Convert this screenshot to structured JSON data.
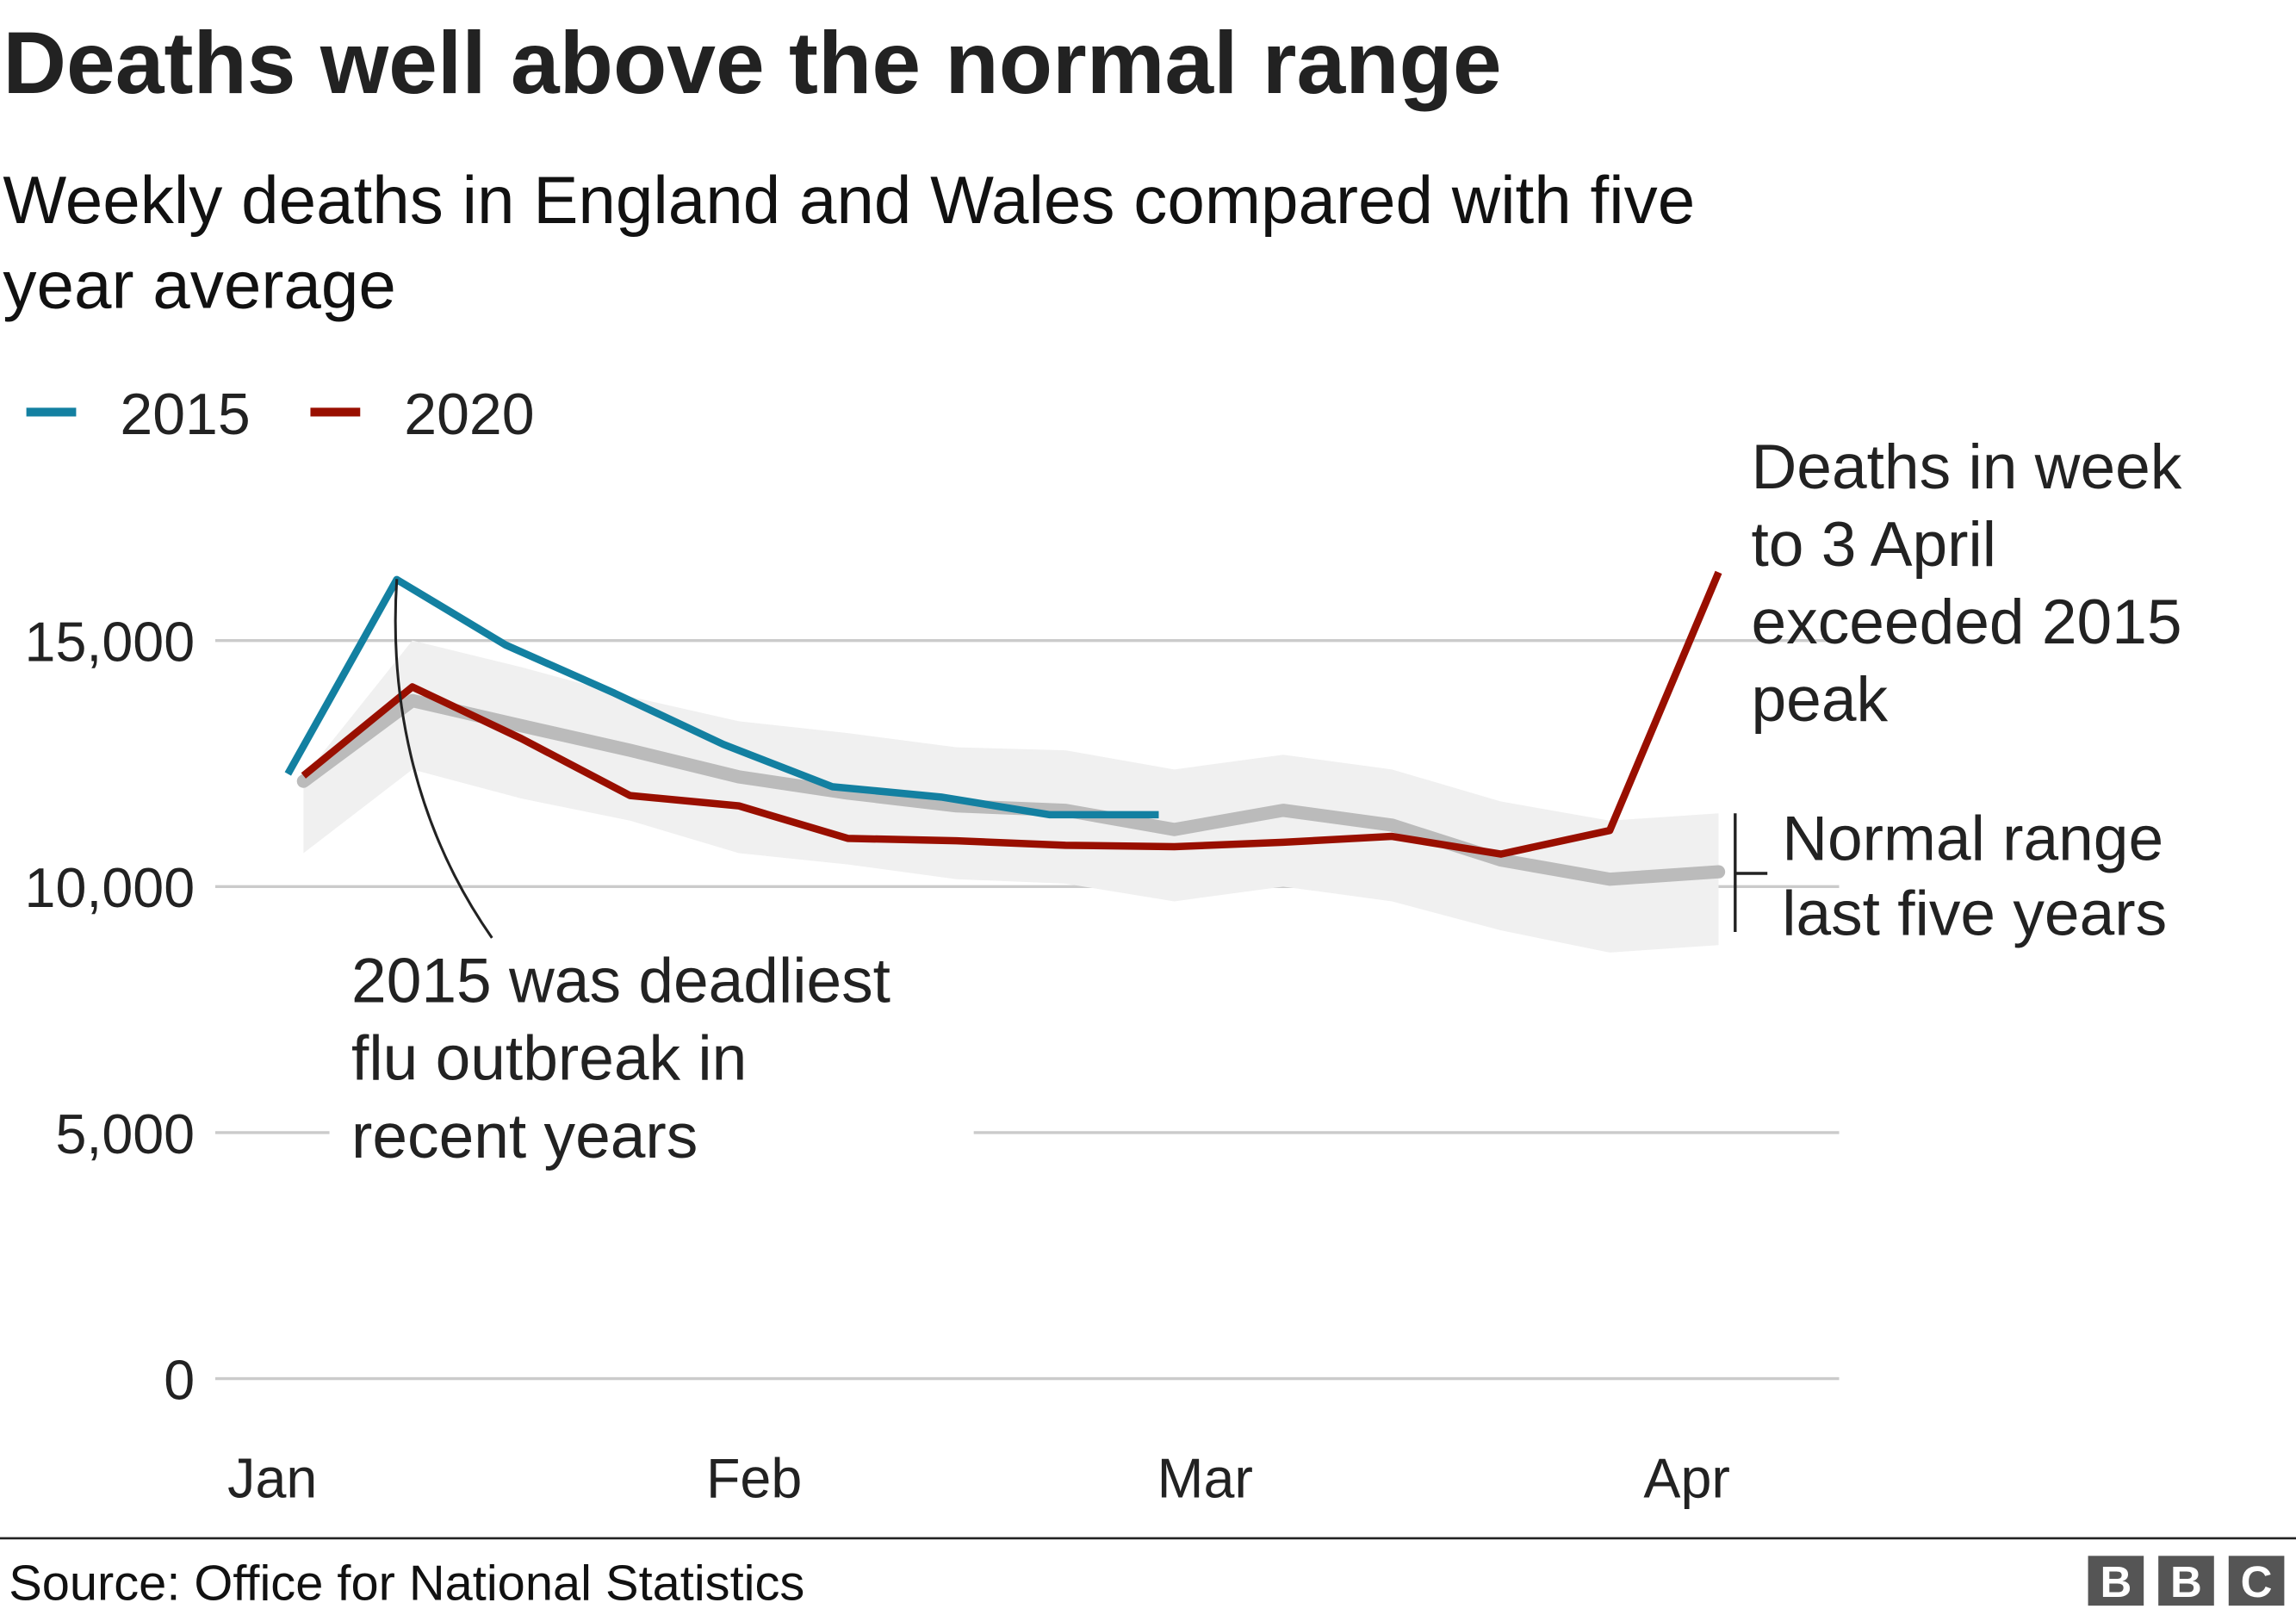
{
  "title": "Deaths well above the normal range",
  "subtitle_lines": [
    "Weekly deaths in England and Wales compared with five",
    "year average"
  ],
  "source": "Source: Office for National Statistics",
  "logo": "BBC",
  "colors": {
    "2015": "#1380a1",
    "2020": "#990f00",
    "average": "#bbbbbb",
    "range": "#f0f0f0",
    "grid": "#cbcbcb"
  },
  "chart_data": {
    "type": "line",
    "title": "Deaths well above the normal range",
    "ylim": [
      0,
      16500
    ],
    "yticks": [
      0,
      5000,
      10000,
      15000
    ],
    "ytick_labels": [
      "0",
      "5,000",
      "10,000",
      "15,000"
    ],
    "xtick_labels": [
      "Jan",
      "Feb",
      "Mar",
      "Apr"
    ],
    "grid": true,
    "legend": "top-left",
    "series": [
      {
        "name": "2015",
        "color": "#1380a1",
        "x": [
          "Jan 2",
          "Jan 9",
          "Jan 16",
          "Jan 23",
          "Jan 30",
          "Feb 6",
          "Feb 13",
          "Feb 20",
          "Feb 27"
        ],
        "values": [
          12290,
          16240,
          14910,
          13930,
          12890,
          12030,
          11820,
          11460,
          11460
        ]
      },
      {
        "name": "2020",
        "color": "#990f00",
        "x": [
          "Jan 3",
          "Jan 10",
          "Jan 17",
          "Jan 24",
          "Jan 31",
          "Feb 7",
          "Feb 14",
          "Feb 21",
          "Feb 28",
          "Mar 6",
          "Mar 13",
          "Mar 20",
          "Mar 27",
          "Apr 3"
        ],
        "values": [
          12254,
          14058,
          13010,
          11850,
          11640,
          10980,
          10930,
          10840,
          10810,
          10900,
          11020,
          10660,
          11140,
          16387
        ]
      }
    ],
    "five_year_average": {
      "x": [
        "Jan 3",
        "Jan 10",
        "Jan 17",
        "Jan 24",
        "Jan 31",
        "Feb 7",
        "Feb 14",
        "Feb 21",
        "Feb 28",
        "Mar 6",
        "Mar 13",
        "Mar 20",
        "Mar 27",
        "Apr 3"
      ],
      "values": [
        12140,
        13780,
        13270,
        12770,
        12230,
        11900,
        11640,
        11550,
        11160,
        11550,
        11250,
        10540,
        10150,
        10300
      ],
      "upper": [
        12230,
        15000,
        14460,
        13860,
        13360,
        13120,
        12830,
        12770,
        12380,
        12680,
        12380,
        11730,
        11340,
        11490
      ],
      "lower": [
        10680,
        12380,
        11790,
        11340,
        10680,
        10450,
        10150,
        10060,
        9700,
        10000,
        9700,
        9110,
        8660,
        8810
      ]
    },
    "annotations": {
      "peak_2020": [
        "Deaths in week",
        "to 3 April",
        "exceeded 2015",
        "peak"
      ],
      "range": [
        "Normal range",
        "last five years"
      ],
      "flu_2015": [
        "2015 was deadliest",
        "flu outbreak in",
        "recent years"
      ]
    }
  }
}
